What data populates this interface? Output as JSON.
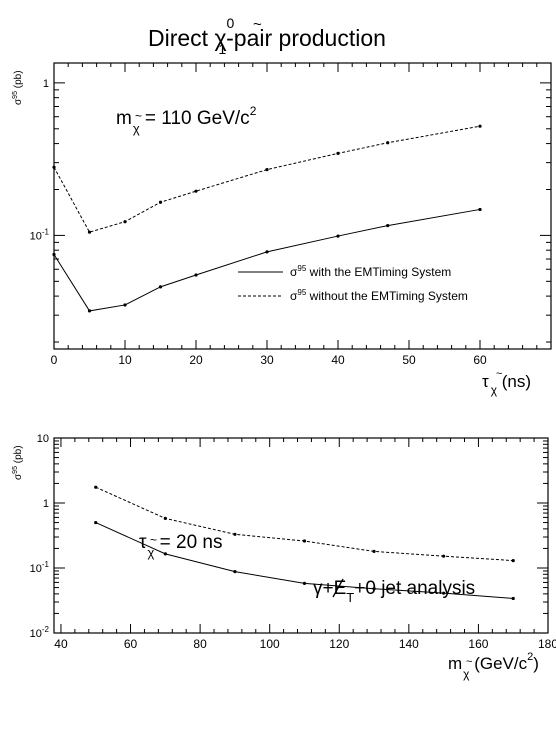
{
  "figure": {
    "title_main": "Direct χ",
    "title_tilde": "~",
    "title_sup": "0",
    "title_sub": "1",
    "title_tail": "-pair production"
  },
  "chart_data": [
    {
      "type": "line",
      "ylabel": "σ",
      "ylabel_sup": "95",
      "ylabel_unit": " (pb)",
      "yscale": "log",
      "xlim": [
        0,
        70
      ],
      "ylim": [
        0.018,
        1.35
      ],
      "x_ticks": [
        0,
        10,
        20,
        30,
        40,
        50,
        60
      ],
      "x_tick_labels": [
        "0",
        "10",
        "20",
        "30",
        "40",
        "50",
        "60"
      ],
      "y_tick_labels": [
        {
          "value": 1,
          "base": "1",
          "exp": ""
        },
        {
          "value": 0.1,
          "base": "10",
          "exp": "-1"
        }
      ],
      "xlabel": "τ",
      "xlabel_tilde": "~",
      "xlabel_sub": "χ",
      "xlabel_unit": " (ns)",
      "annotation": {
        "m": "m",
        "tilde": "~",
        "sub": "χ",
        "text": " = 110 GeV/c",
        "sup": "2"
      },
      "legend_position": "bottom-right",
      "series": [
        {
          "name": "σ",
          "name_sup": "95",
          "name_tail": " with the EMTiming System",
          "style": "solid",
          "x": [
            0,
            5,
            10,
            15,
            20,
            30,
            40,
            47,
            60
          ],
          "y": [
            0.075,
            0.032,
            0.035,
            0.046,
            0.055,
            0.078,
            0.099,
            0.116,
            0.148
          ]
        },
        {
          "name": "σ",
          "name_sup": "95",
          "name_tail": " without the EMTiming System",
          "style": "dashed",
          "x": [
            0,
            5,
            10,
            15,
            20,
            30,
            40,
            47,
            60
          ],
          "y": [
            0.28,
            0.105,
            0.123,
            0.165,
            0.195,
            0.27,
            0.345,
            0.405,
            0.52
          ]
        }
      ]
    },
    {
      "type": "line",
      "ylabel": "σ",
      "ylabel_sup": "95",
      "ylabel_unit": " (pb)",
      "yscale": "log",
      "xlim": [
        38,
        180
      ],
      "ylim": [
        0.01,
        10
      ],
      "x_ticks": [
        40,
        60,
        80,
        100,
        120,
        140,
        160,
        180
      ],
      "x_tick_labels": [
        "40",
        "60",
        "80",
        "100",
        "120",
        "140",
        "160",
        "180"
      ],
      "y_tick_labels": [
        {
          "value": 10,
          "base": "10",
          "exp": ""
        },
        {
          "value": 1,
          "base": "1",
          "exp": ""
        },
        {
          "value": 0.1,
          "base": "10",
          "exp": "-1"
        },
        {
          "value": 0.01,
          "base": "10",
          "exp": "-2"
        }
      ],
      "xlabel": "m",
      "xlabel_tilde": "~",
      "xlabel_sub": "χ",
      "xlabel_unit": " (GeV/c",
      "xlabel_sup": "2",
      "xlabel_close": ")",
      "annotation": {
        "m": "τ",
        "tilde": "~",
        "sub": "χ",
        "text": " = 20 ns",
        "sup": ""
      },
      "annotation2": {
        "pre": "γ+",
        "slash": "E",
        "sub": "T",
        "post": "+0 jet analysis"
      },
      "series": [
        {
          "style": "solid",
          "x": [
            50,
            70,
            90,
            110,
            130,
            150,
            170
          ],
          "y": [
            0.5,
            0.165,
            0.088,
            0.058,
            0.048,
            0.041,
            0.034
          ]
        },
        {
          "style": "dashed",
          "x": [
            50,
            70,
            90,
            110,
            130,
            150,
            170
          ],
          "y": [
            1.75,
            0.58,
            0.33,
            0.26,
            0.18,
            0.152,
            0.13
          ]
        }
      ]
    }
  ]
}
